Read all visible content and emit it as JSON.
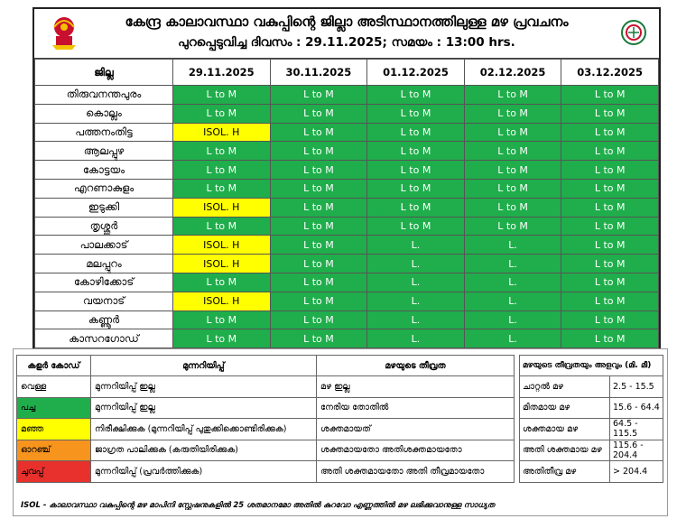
{
  "header": {
    "title": "കേന്ദ്ര കാലാവസ്ഥാ വകുപ്പിന്റെ ജില്ലാ അടിസ്ഥാനത്തിലുള്ള മഴ പ്രവചനം",
    "issued": "പുറപ്പെടുവിച്ച ദിവസം : 29.11.2025; സമയം : 13:00 hrs."
  },
  "table": {
    "district_header": "ജില്ല",
    "dates": [
      "29.11.2025",
      "30.11.2025",
      "01.12.2025",
      "02.12.2025",
      "03.12.2025"
    ],
    "rows": [
      {
        "district": "തിരുവനന്തപുരം",
        "cells": [
          "L to M",
          "L to M",
          "L to M",
          "L to M",
          "L to M"
        ]
      },
      {
        "district": "കൊല്ലം",
        "cells": [
          "L to M",
          "L to M",
          "L to M",
          "L to M",
          "L to M"
        ]
      },
      {
        "district": "പത്തനംതിട്ട",
        "cells": [
          "ISOL. H",
          "L to M",
          "L to M",
          "L to M",
          "L to M"
        ]
      },
      {
        "district": "ആലപ്പുഴ",
        "cells": [
          "L to M",
          "L to M",
          "L to M",
          "L to M",
          "L to M"
        ]
      },
      {
        "district": "കോട്ടയം",
        "cells": [
          "L to M",
          "L to M",
          "L to M",
          "L to M",
          "L to M"
        ]
      },
      {
        "district": "എറണാകുളം",
        "cells": [
          "L to M",
          "L to M",
          "L to M",
          "L to M",
          "L to M"
        ]
      },
      {
        "district": "ഇടുക്കി",
        "cells": [
          "ISOL. H",
          "L to M",
          "L to M",
          "L to M",
          "L to M"
        ]
      },
      {
        "district": "തൃശ്ശൂർ",
        "cells": [
          "L to M",
          "L to M",
          "L to M",
          "L to M",
          "L to M"
        ]
      },
      {
        "district": "പാലക്കാട്",
        "cells": [
          "ISOL. H",
          "L to M",
          "L.",
          "L.",
          "L to M"
        ]
      },
      {
        "district": "മലപ്പുറം",
        "cells": [
          "ISOL. H",
          "L to M",
          "L.",
          "L.",
          "L to M"
        ]
      },
      {
        "district": "കോഴിക്കോട്",
        "cells": [
          "L to M",
          "L to M",
          "L.",
          "L.",
          "L to M"
        ]
      },
      {
        "district": "വയനാട്",
        "cells": [
          "ISOL. H",
          "L to M",
          "L.",
          "L.",
          "L to M"
        ]
      },
      {
        "district": "കണ്ണൂർ",
        "cells": [
          "L to M",
          "L to M",
          "L.",
          "L.",
          "L to M"
        ]
      },
      {
        "district": "കാസറഗോഡ്",
        "cells": [
          "L to M",
          "L to M",
          "L.",
          "L.",
          "L to M"
        ]
      }
    ]
  },
  "cell_colors": {
    "L to M": "#1fae4b",
    "L.": "#1fae4b",
    "ISOL. H": "#ffff00"
  },
  "legend": {
    "headers": [
      "കളർ കോഡ്",
      "മുന്നറിയിപ്പ്",
      "മഴയുടെ തീവ്രത"
    ],
    "rows": [
      {
        "color_name": "വെള്ള",
        "swatch": "white",
        "warning": "മുന്നറിയിപ്പ് ഇല്ല",
        "intensity": "മഴ ഇല്ല"
      },
      {
        "color_name": "പച്ച",
        "swatch": "green",
        "warning": "മുന്നറിയിപ്പ് ഇല്ല",
        "intensity": "നേരിയ തോതിൽ"
      },
      {
        "color_name": "മഞ്ഞ",
        "swatch": "yellow",
        "warning": "നിരീക്ഷിക്കുക (മുന്നറിയിപ്പ് പുതുക്കിക്കൊണ്ടിരിക്കുക)",
        "intensity": "ശക്തമായത്"
      },
      {
        "color_name": "ഓറഞ്ച്",
        "swatch": "orange",
        "warning": "ജാഗ്രത പാലിക്കുക (കരുതിയിരിക്കുക)",
        "intensity": "ശക്തമായതോ അതിശക്തമായതോ"
      },
      {
        "color_name": "ചുവപ്പ്",
        "swatch": "red",
        "warning": "മുന്നറിയിപ്പ് (പ്രവർത്തിക്കുക)",
        "intensity": "അതി ശക്തമായതോ അതി തീവ്രമായതോ"
      }
    ]
  },
  "intensity_table": {
    "header": "മഴയുടെ തീവ്രതയും അളവും (മി. മീ)",
    "rows": [
      {
        "label": "ചാറ്റൽ മഴ",
        "range": "2.5 - 15.5"
      },
      {
        "label": "മിതമായ മഴ",
        "range": "15.6 - 64.4"
      },
      {
        "label": "ശക്തമായ മഴ",
        "range": "64.5 - 115.5"
      },
      {
        "label": "അതി ശക്തമായ മഴ",
        "range": "115.6 - 204.4"
      },
      {
        "label": "അതിതീവ്ര മഴ",
        "range": "> 204.4"
      }
    ]
  },
  "footnote": "ISOL - കാലാവസ്ഥാ വകുപ്പിന്റെ മഴ മാപിനി സ്റ്റേഷനുകളിൽ 25 ശതമാനമോ അതിൽ കുറവോ എണ്ണത്തിൽ മഴ ലഭിക്കുവാനുള്ള സാധ്യത",
  "icons": {
    "left": "kerala-emblem-icon",
    "right": "imd-logo-icon"
  }
}
